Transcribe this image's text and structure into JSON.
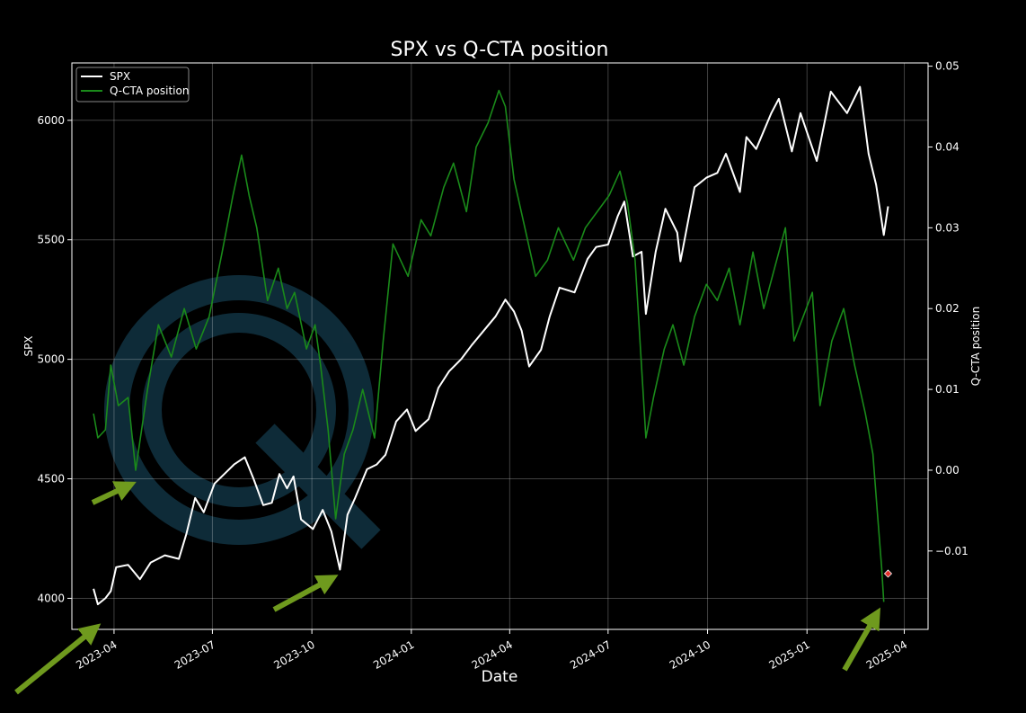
{
  "chart_data": {
    "type": "line",
    "title": "SPX vs Q-CTA position",
    "xlabel": "Date",
    "ylabel_left": "SPX",
    "ylabel_right": "Q-CTA position",
    "x_range": [
      "2023-02-21",
      "2025-04-23"
    ],
    "y_left_range": [
      3870,
      6240
    ],
    "y_right_range": [
      -0.0197,
      0.0504
    ],
    "x_ticks": [
      "2023-04",
      "2023-07",
      "2023-10",
      "2024-01",
      "2024-04",
      "2024-07",
      "2024-10",
      "2025-01",
      "2025-04"
    ],
    "y_left_ticks": [
      4000,
      4500,
      5000,
      5500,
      6000
    ],
    "y_right_ticks": [
      -0.01,
      0.0,
      0.01,
      0.02,
      0.03,
      0.04,
      0.05
    ],
    "y_right_tick_labels": [
      "−0.01",
      "0.00",
      "0.01",
      "0.02",
      "0.03",
      "0.04",
      "0.05"
    ],
    "grid": true,
    "legend_position": "top-left",
    "colors": {
      "spx": "#ffffff",
      "qcta": "#1a8a1a",
      "marker": "#e0302a",
      "arrows": "#6f9a1e",
      "watermark": "#1b4f66"
    },
    "series": [
      {
        "name": "SPX",
        "axis": "left",
        "points": [
          [
            "2023-03-13",
            4040
          ],
          [
            "2023-03-17",
            3975
          ],
          [
            "2023-03-24",
            4000
          ],
          [
            "2023-03-29",
            4030
          ],
          [
            "2023-04-03",
            4130
          ],
          [
            "2023-04-14",
            4140
          ],
          [
            "2023-04-25",
            4080
          ],
          [
            "2023-05-05",
            4150
          ],
          [
            "2023-05-18",
            4180
          ],
          [
            "2023-05-31",
            4165
          ],
          [
            "2023-06-07",
            4270
          ],
          [
            "2023-06-15",
            4420
          ],
          [
            "2023-06-23",
            4360
          ],
          [
            "2023-07-03",
            4480
          ],
          [
            "2023-07-12",
            4520
          ],
          [
            "2023-07-21",
            4560
          ],
          [
            "2023-07-31",
            4590
          ],
          [
            "2023-08-08",
            4500
          ],
          [
            "2023-08-17",
            4390
          ],
          [
            "2023-08-25",
            4400
          ],
          [
            "2023-09-01",
            4520
          ],
          [
            "2023-09-08",
            4460
          ],
          [
            "2023-09-14",
            4510
          ],
          [
            "2023-09-21",
            4330
          ],
          [
            "2023-10-02",
            4290
          ],
          [
            "2023-10-11",
            4370
          ],
          [
            "2023-10-19",
            4280
          ],
          [
            "2023-10-27",
            4120
          ],
          [
            "2023-11-03",
            4350
          ],
          [
            "2023-11-10",
            4420
          ],
          [
            "2023-11-21",
            4540
          ],
          [
            "2023-11-30",
            4560
          ],
          [
            "2023-12-08",
            4600
          ],
          [
            "2023-12-18",
            4740
          ],
          [
            "2023-12-28",
            4790
          ],
          [
            "2024-01-05",
            4700
          ],
          [
            "2024-01-17",
            4750
          ],
          [
            "2024-01-26",
            4880
          ],
          [
            "2024-02-05",
            4950
          ],
          [
            "2024-02-16",
            5000
          ],
          [
            "2024-02-26",
            5060
          ],
          [
            "2024-03-08",
            5120
          ],
          [
            "2024-03-19",
            5180
          ],
          [
            "2024-03-28",
            5250
          ],
          [
            "2024-04-05",
            5200
          ],
          [
            "2024-04-12",
            5120
          ],
          [
            "2024-04-19",
            4970
          ],
          [
            "2024-04-30",
            5040
          ],
          [
            "2024-05-08",
            5180
          ],
          [
            "2024-05-17",
            5300
          ],
          [
            "2024-05-31",
            5280
          ],
          [
            "2024-06-12",
            5420
          ],
          [
            "2024-06-20",
            5470
          ],
          [
            "2024-07-01",
            5480
          ],
          [
            "2024-07-10",
            5600
          ],
          [
            "2024-07-16",
            5660
          ],
          [
            "2024-07-24",
            5430
          ],
          [
            "2024-08-01",
            5450
          ],
          [
            "2024-08-05",
            5190
          ],
          [
            "2024-08-14",
            5450
          ],
          [
            "2024-08-23",
            5630
          ],
          [
            "2024-09-03",
            5530
          ],
          [
            "2024-09-06",
            5410
          ],
          [
            "2024-09-19",
            5720
          ],
          [
            "2024-09-30",
            5760
          ],
          [
            "2024-10-10",
            5780
          ],
          [
            "2024-10-18",
            5860
          ],
          [
            "2024-10-31",
            5700
          ],
          [
            "2024-11-06",
            5930
          ],
          [
            "2024-11-15",
            5880
          ],
          [
            "2024-11-29",
            6030
          ],
          [
            "2024-12-06",
            6090
          ],
          [
            "2024-12-18",
            5870
          ],
          [
            "2024-12-26",
            6030
          ],
          [
            "2025-01-10",
            5830
          ],
          [
            "2025-01-23",
            6120
          ],
          [
            "2025-02-07",
            6030
          ],
          [
            "2025-02-19",
            6140
          ],
          [
            "2025-02-27",
            5860
          ],
          [
            "2025-03-06",
            5730
          ],
          [
            "2025-03-10",
            5610
          ],
          [
            "2025-03-13",
            5520
          ],
          [
            "2025-03-17",
            5640
          ]
        ]
      },
      {
        "name": "Q-CTA position",
        "axis": "right",
        "points": [
          [
            "2023-03-13",
            0.007
          ],
          [
            "2023-03-17",
            0.004
          ],
          [
            "2023-03-24",
            0.005
          ],
          [
            "2023-03-29",
            0.013
          ],
          [
            "2023-04-05",
            0.008
          ],
          [
            "2023-04-14",
            0.009
          ],
          [
            "2023-04-21",
            0.0
          ],
          [
            "2023-05-02",
            0.01
          ],
          [
            "2023-05-12",
            0.018
          ],
          [
            "2023-05-24",
            0.014
          ],
          [
            "2023-06-05",
            0.02
          ],
          [
            "2023-06-16",
            0.015
          ],
          [
            "2023-06-28",
            0.019
          ],
          [
            "2023-07-10",
            0.027
          ],
          [
            "2023-07-20",
            0.034
          ],
          [
            "2023-07-28",
            0.039
          ],
          [
            "2023-08-04",
            0.034
          ],
          [
            "2023-08-11",
            0.03
          ],
          [
            "2023-08-21",
            0.021
          ],
          [
            "2023-08-31",
            0.025
          ],
          [
            "2023-09-08",
            0.02
          ],
          [
            "2023-09-15",
            0.022
          ],
          [
            "2023-09-26",
            0.015
          ],
          [
            "2023-10-04",
            0.018
          ],
          [
            "2023-10-09",
            0.013
          ],
          [
            "2023-10-16",
            0.005
          ],
          [
            "2023-10-23",
            -0.006
          ],
          [
            "2023-10-31",
            0.002
          ],
          [
            "2023-11-08",
            0.005
          ],
          [
            "2023-11-17",
            0.01
          ],
          [
            "2023-11-28",
            0.004
          ],
          [
            "2023-12-06",
            0.016
          ],
          [
            "2023-12-15",
            0.028
          ],
          [
            "2023-12-29",
            0.024
          ],
          [
            "2024-01-10",
            0.031
          ],
          [
            "2024-01-19",
            0.029
          ],
          [
            "2024-01-31",
            0.035
          ],
          [
            "2024-02-09",
            0.038
          ],
          [
            "2024-02-21",
            0.032
          ],
          [
            "2024-03-01",
            0.04
          ],
          [
            "2024-03-12",
            0.043
          ],
          [
            "2024-03-22",
            0.047
          ],
          [
            "2024-03-28",
            0.045
          ],
          [
            "2024-04-05",
            0.036
          ],
          [
            "2024-04-15",
            0.03
          ],
          [
            "2024-04-25",
            0.024
          ],
          [
            "2024-05-06",
            0.026
          ],
          [
            "2024-05-16",
            0.03
          ],
          [
            "2024-05-30",
            0.026
          ],
          [
            "2024-06-10",
            0.03
          ],
          [
            "2024-06-21",
            0.032
          ],
          [
            "2024-07-02",
            0.034
          ],
          [
            "2024-07-12",
            0.037
          ],
          [
            "2024-07-19",
            0.033
          ],
          [
            "2024-07-26",
            0.026
          ],
          [
            "2024-08-05",
            0.004
          ],
          [
            "2024-08-12",
            0.009
          ],
          [
            "2024-08-22",
            0.015
          ],
          [
            "2024-08-30",
            0.018
          ],
          [
            "2024-09-09",
            0.013
          ],
          [
            "2024-09-19",
            0.019
          ],
          [
            "2024-09-30",
            0.023
          ],
          [
            "2024-10-10",
            0.021
          ],
          [
            "2024-10-21",
            0.025
          ],
          [
            "2024-10-31",
            0.018
          ],
          [
            "2024-11-12",
            0.027
          ],
          [
            "2024-11-22",
            0.02
          ],
          [
            "2024-12-02",
            0.025
          ],
          [
            "2024-12-12",
            0.03
          ],
          [
            "2024-12-20",
            0.016
          ],
          [
            "2025-01-06",
            0.022
          ],
          [
            "2025-01-13",
            0.008
          ],
          [
            "2025-01-24",
            0.016
          ],
          [
            "2025-02-04",
            0.02
          ],
          [
            "2025-02-14",
            0.013
          ],
          [
            "2025-02-24",
            0.007
          ],
          [
            "2025-03-03",
            0.002
          ],
          [
            "2025-03-07",
            -0.005
          ],
          [
            "2025-03-11",
            -0.012
          ],
          [
            "2025-03-13",
            -0.0163
          ]
        ]
      }
    ],
    "marker": {
      "series": "Q-CTA position",
      "x": "2025-03-17",
      "y": -0.0128
    }
  }
}
